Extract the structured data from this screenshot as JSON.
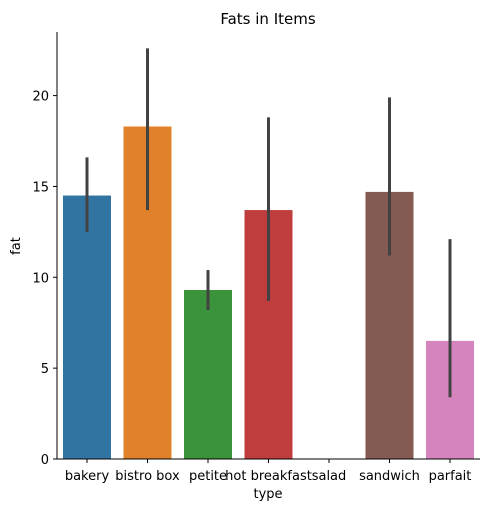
{
  "chart_data": {
    "type": "bar",
    "title": "Fats in Items",
    "xlabel": "type",
    "ylabel": "fat",
    "categories": [
      "bakery",
      "bistro box",
      "petite",
      "hot breakfast",
      "salad",
      "sandwich",
      "parfait"
    ],
    "values": [
      14.5,
      18.3,
      9.3,
      13.7,
      0,
      14.7,
      6.5
    ],
    "error_low": [
      12.5,
      13.7,
      8.2,
      8.7,
      0,
      11.2,
      3.4
    ],
    "error_high": [
      16.6,
      22.6,
      10.4,
      18.8,
      0,
      19.9,
      12.1
    ],
    "colors": [
      "#3274a1",
      "#e1812c",
      "#3a923a",
      "#c03d3e",
      "#9372b2",
      "#845b53",
      "#d684bd"
    ],
    "error_color": "#424242",
    "ylim": [
      0,
      23.5
    ],
    "yticks": [
      0,
      5,
      10,
      15,
      20
    ],
    "grid": false,
    "legend": "none"
  }
}
